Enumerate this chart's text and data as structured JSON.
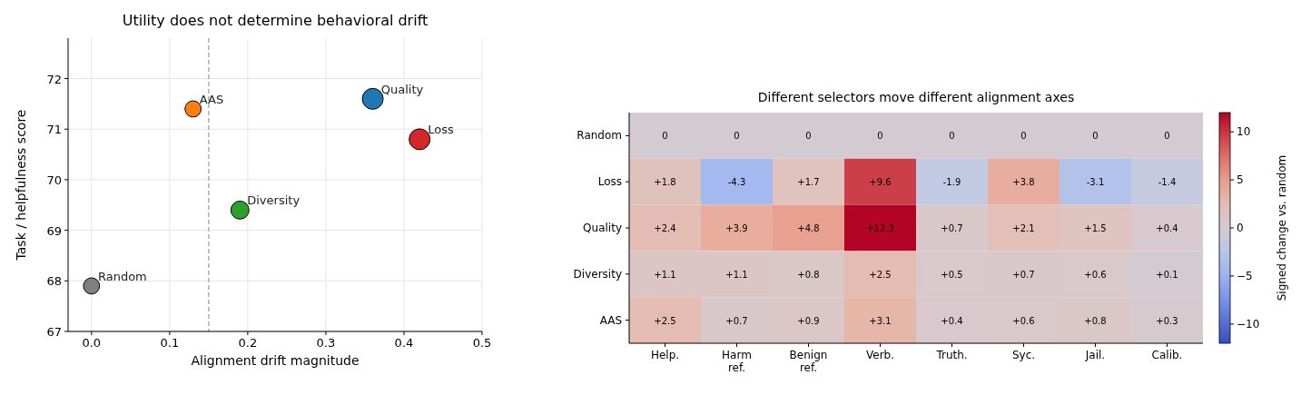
{
  "chart_data": [
    {
      "type": "bubble",
      "title": "Utility does not determine behavioral drift",
      "xlabel": "Alignment drift magnitude",
      "ylabel": "Task / helpfulness score",
      "xlim": [
        -0.03,
        0.5
      ],
      "ylim": [
        67,
        72.8
      ],
      "xticks": [
        {
          "value": 0,
          "label": "0.0"
        },
        {
          "value": 0.1,
          "label": "0.1"
        },
        {
          "value": 0.2,
          "label": "0.2"
        },
        {
          "value": 0.3,
          "label": "0.3"
        },
        {
          "value": 0.4,
          "label": "0.4"
        },
        {
          "value": 0.5,
          "label": "0.5"
        }
      ],
      "yticks": [
        67,
        68,
        69,
        70,
        71,
        72
      ],
      "grid": true,
      "ref_lines": [
        {
          "axis": "x",
          "value": 0.15,
          "color": "#999999",
          "line_style": "dashed"
        }
      ],
      "series": [
        {
          "name": "Random",
          "color": "#7f7f7f",
          "x": [
            0
          ],
          "values": [
            67.9
          ],
          "sizes": [
            0.6
          ]
        },
        {
          "name": "AAS",
          "color": "#ff7f0e",
          "x": [
            0.13
          ],
          "values": [
            71.4
          ],
          "sizes": [
            0.6
          ]
        },
        {
          "name": "Diversity",
          "color": "#2ca02c",
          "x": [
            0.19
          ],
          "values": [
            69.4
          ],
          "sizes": [
            0.75
          ]
        },
        {
          "name": "Quality",
          "color": "#1f77b4",
          "x": [
            0.36
          ],
          "values": [
            71.6
          ],
          "sizes": [
            1
          ]
        },
        {
          "name": "Loss",
          "color": "#d62728",
          "x": [
            0.42
          ],
          "values": [
            70.8
          ],
          "sizes": [
            1
          ]
        }
      ]
    },
    {
      "type": "heatmap",
      "title": "Different selectors move different alignment axes",
      "clabel": "Signed change vs. random",
      "categories": [
        "Help.",
        "Harm ref.",
        "Benign ref.",
        "Verb.",
        "Truth.",
        "Syc.",
        "Jail.",
        "Calib."
      ],
      "y_categories": [
        "Random",
        "Loss",
        "Quality",
        "Diversity",
        "AAS"
      ],
      "cells": [
        [
          0,
          0,
          0,
          0,
          0,
          0,
          0,
          0
        ],
        [
          1.8,
          -4.3,
          1.7,
          9.6,
          -1.9,
          3.8,
          -3.1,
          -1.4
        ],
        [
          2.4,
          3.9,
          4.8,
          12.3,
          0.7,
          2.1,
          1.5,
          0.4
        ],
        [
          1.1,
          1.1,
          0.8,
          2.5,
          0.5,
          0.7,
          0.6,
          0.1
        ],
        [
          2.5,
          0.7,
          0.9,
          3.1,
          0.4,
          0.6,
          0.8,
          0.3
        ]
      ],
      "cell_labels": [
        [
          "0",
          "0",
          "0",
          "0",
          "0",
          "0",
          "0",
          "0"
        ],
        [
          "+1.8",
          "-4.3",
          "+1.7",
          "+9.6",
          "-1.9",
          "+3.8",
          "-3.1",
          "-1.4"
        ],
        [
          "+2.4",
          "+3.9",
          "+4.8",
          "+12.3",
          "+0.7",
          "+2.1",
          "+1.5",
          "+0.4"
        ],
        [
          "+1.1",
          "+1.1",
          "+0.8",
          "+2.5",
          "+0.5",
          "+0.7",
          "+0.6",
          "+0.1"
        ],
        [
          "+2.5",
          "+0.7",
          "+0.9",
          "+3.1",
          "+0.4",
          "+0.6",
          "+0.8",
          "+0.3"
        ]
      ],
      "clim": [
        -12,
        12
      ],
      "cticks": [
        {
          "value": -10,
          "label": "−10"
        },
        {
          "value": -5,
          "label": "−5"
        },
        0,
        5,
        10
      ]
    }
  ]
}
